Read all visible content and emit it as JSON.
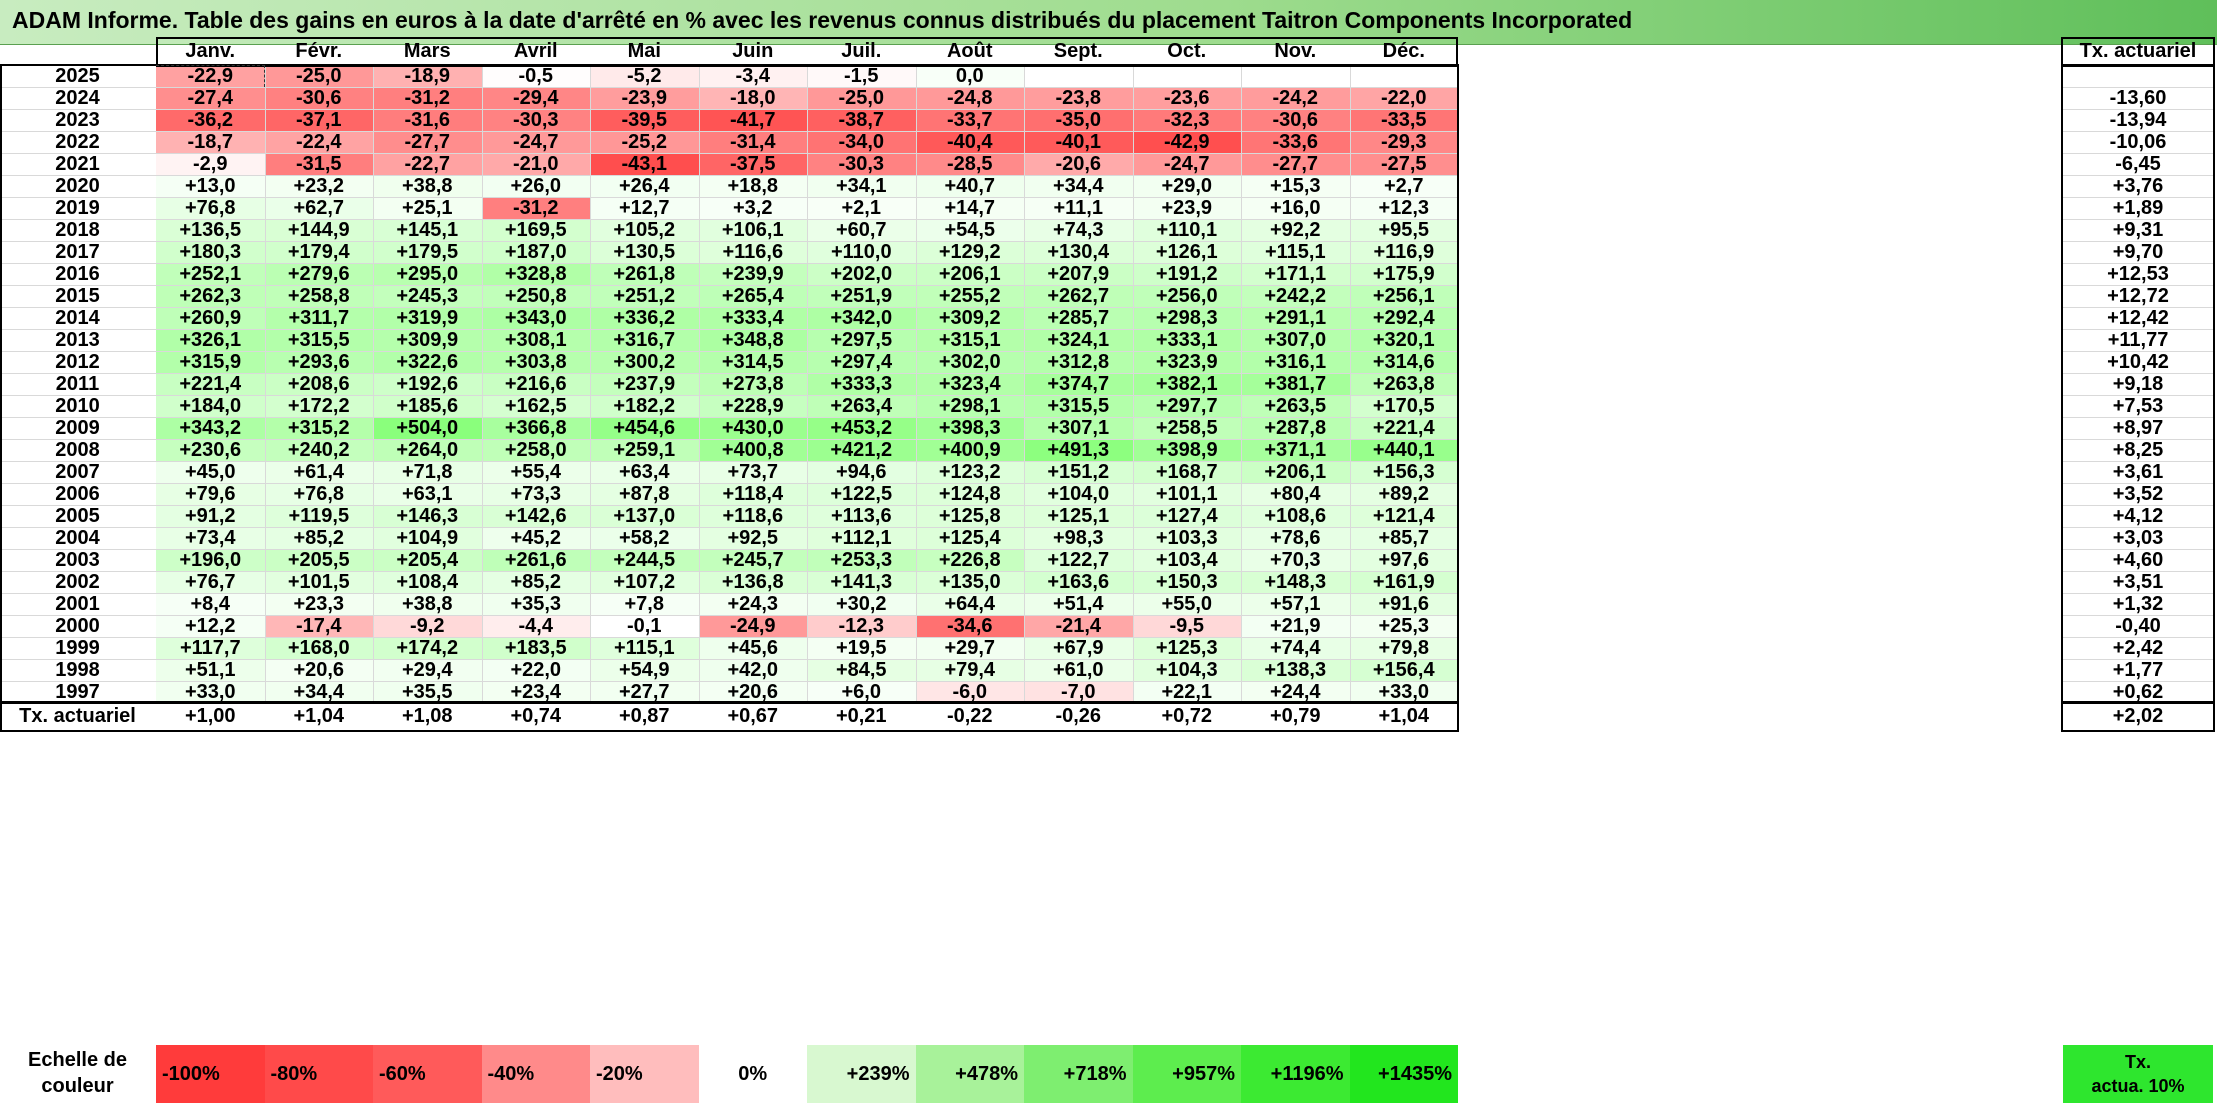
{
  "title": "ADAM Informe. Table des gains en euros à la date d'arrêté en % avec les revenus connus distribués du placement Taitron Components Incorporated",
  "months": [
    "Janv.",
    "Févr.",
    "Mars",
    "Avril",
    "Mai",
    "Juin",
    "Juil.",
    "Août",
    "Sept.",
    "Oct.",
    "Nov.",
    "Déc."
  ],
  "tx_header": "Tx. actuariel",
  "rows": [
    {
      "year": "2025",
      "values": [
        "-22,9",
        "-25,0",
        "-18,9",
        "-0,5",
        "-5,2",
        "-3,4",
        "-1,5",
        "0,0",
        "",
        "",
        "",
        ""
      ],
      "tx": ""
    },
    {
      "year": "2024",
      "values": [
        "-27,4",
        "-30,6",
        "-31,2",
        "-29,4",
        "-23,9",
        "-18,0",
        "-25,0",
        "-24,8",
        "-23,8",
        "-23,6",
        "-24,2",
        "-22,0"
      ],
      "tx": "-13,60"
    },
    {
      "year": "2023",
      "values": [
        "-36,2",
        "-37,1",
        "-31,6",
        "-30,3",
        "-39,5",
        "-41,7",
        "-38,7",
        "-33,7",
        "-35,0",
        "-32,3",
        "-30,6",
        "-33,5"
      ],
      "tx": "-13,94"
    },
    {
      "year": "2022",
      "values": [
        "-18,7",
        "-22,4",
        "-27,7",
        "-24,7",
        "-25,2",
        "-31,4",
        "-34,0",
        "-40,4",
        "-40,1",
        "-42,9",
        "-33,6",
        "-29,3"
      ],
      "tx": "-10,06"
    },
    {
      "year": "2021",
      "values": [
        "-2,9",
        "-31,5",
        "-22,7",
        "-21,0",
        "-43,1",
        "-37,5",
        "-30,3",
        "-28,5",
        "-20,6",
        "-24,7",
        "-27,7",
        "-27,5"
      ],
      "tx": "-6,45"
    },
    {
      "year": "2020",
      "values": [
        "+13,0",
        "+23,2",
        "+38,8",
        "+26,0",
        "+26,4",
        "+18,8",
        "+34,1",
        "+40,7",
        "+34,4",
        "+29,0",
        "+15,3",
        "+2,7"
      ],
      "tx": "+3,76"
    },
    {
      "year": "2019",
      "values": [
        "+76,8",
        "+62,7",
        "+25,1",
        "-31,2",
        "+12,7",
        "+3,2",
        "+2,1",
        "+14,7",
        "+11,1",
        "+23,9",
        "+16,0",
        "+12,3"
      ],
      "tx": "+1,89"
    },
    {
      "year": "2018",
      "values": [
        "+136,5",
        "+144,9",
        "+145,1",
        "+169,5",
        "+105,2",
        "+106,1",
        "+60,7",
        "+54,5",
        "+74,3",
        "+110,1",
        "+92,2",
        "+95,5"
      ],
      "tx": "+9,31"
    },
    {
      "year": "2017",
      "values": [
        "+180,3",
        "+179,4",
        "+179,5",
        "+187,0",
        "+130,5",
        "+116,6",
        "+110,0",
        "+129,2",
        "+130,4",
        "+126,1",
        "+115,1",
        "+116,9"
      ],
      "tx": "+9,70"
    },
    {
      "year": "2016",
      "values": [
        "+252,1",
        "+279,6",
        "+295,0",
        "+328,8",
        "+261,8",
        "+239,9",
        "+202,0",
        "+206,1",
        "+207,9",
        "+191,2",
        "+171,1",
        "+175,9"
      ],
      "tx": "+12,53"
    },
    {
      "year": "2015",
      "values": [
        "+262,3",
        "+258,8",
        "+245,3",
        "+250,8",
        "+251,2",
        "+265,4",
        "+251,9",
        "+255,2",
        "+262,7",
        "+256,0",
        "+242,2",
        "+256,1"
      ],
      "tx": "+12,72"
    },
    {
      "year": "2014",
      "values": [
        "+260,9",
        "+311,7",
        "+319,9",
        "+343,0",
        "+336,2",
        "+333,4",
        "+342,0",
        "+309,2",
        "+285,7",
        "+298,3",
        "+291,1",
        "+292,4"
      ],
      "tx": "+12,42"
    },
    {
      "year": "2013",
      "values": [
        "+326,1",
        "+315,5",
        "+309,9",
        "+308,1",
        "+316,7",
        "+348,8",
        "+297,5",
        "+315,1",
        "+324,1",
        "+333,1",
        "+307,0",
        "+320,1"
      ],
      "tx": "+11,77"
    },
    {
      "year": "2012",
      "values": [
        "+315,9",
        "+293,6",
        "+322,6",
        "+303,8",
        "+300,2",
        "+314,5",
        "+297,4",
        "+302,0",
        "+312,8",
        "+323,9",
        "+316,1",
        "+314,6"
      ],
      "tx": "+10,42"
    },
    {
      "year": "2011",
      "values": [
        "+221,4",
        "+208,6",
        "+192,6",
        "+216,6",
        "+237,9",
        "+273,8",
        "+333,3",
        "+323,4",
        "+374,7",
        "+382,1",
        "+381,7",
        "+263,8"
      ],
      "tx": "+9,18"
    },
    {
      "year": "2010",
      "values": [
        "+184,0",
        "+172,2",
        "+185,6",
        "+162,5",
        "+182,2",
        "+228,9",
        "+263,4",
        "+298,1",
        "+315,5",
        "+297,7",
        "+263,5",
        "+170,5"
      ],
      "tx": "+7,53"
    },
    {
      "year": "2009",
      "values": [
        "+343,2",
        "+315,2",
        "+504,0",
        "+366,8",
        "+454,6",
        "+430,0",
        "+453,2",
        "+398,3",
        "+307,1",
        "+258,5",
        "+287,8",
        "+221,4"
      ],
      "tx": "+8,97"
    },
    {
      "year": "2008",
      "values": [
        "+230,6",
        "+240,2",
        "+264,0",
        "+258,0",
        "+259,1",
        "+400,8",
        "+421,2",
        "+400,9",
        "+491,3",
        "+398,9",
        "+371,1",
        "+440,1"
      ],
      "tx": "+8,25"
    },
    {
      "year": "2007",
      "values": [
        "+45,0",
        "+61,4",
        "+71,8",
        "+55,4",
        "+63,4",
        "+73,7",
        "+94,6",
        "+123,2",
        "+151,2",
        "+168,7",
        "+206,1",
        "+156,3"
      ],
      "tx": "+3,61"
    },
    {
      "year": "2006",
      "values": [
        "+79,6",
        "+76,8",
        "+63,1",
        "+73,3",
        "+87,8",
        "+118,4",
        "+122,5",
        "+124,8",
        "+104,0",
        "+101,1",
        "+80,4",
        "+89,2"
      ],
      "tx": "+3,52"
    },
    {
      "year": "2005",
      "values": [
        "+91,2",
        "+119,5",
        "+146,3",
        "+142,6",
        "+137,0",
        "+118,6",
        "+113,6",
        "+125,8",
        "+125,1",
        "+127,4",
        "+108,6",
        "+121,4"
      ],
      "tx": "+4,12"
    },
    {
      "year": "2004",
      "values": [
        "+73,4",
        "+85,2",
        "+104,9",
        "+45,2",
        "+58,2",
        "+92,5",
        "+112,1",
        "+125,4",
        "+98,3",
        "+103,3",
        "+78,6",
        "+85,7"
      ],
      "tx": "+3,03"
    },
    {
      "year": "2003",
      "values": [
        "+196,0",
        "+205,5",
        "+205,4",
        "+261,6",
        "+244,5",
        "+245,7",
        "+253,3",
        "+226,8",
        "+122,7",
        "+103,4",
        "+70,3",
        "+97,6"
      ],
      "tx": "+4,60"
    },
    {
      "year": "2002",
      "values": [
        "+76,7",
        "+101,5",
        "+108,4",
        "+85,2",
        "+107,2",
        "+136,8",
        "+141,3",
        "+135,0",
        "+163,6",
        "+150,3",
        "+148,3",
        "+161,9"
      ],
      "tx": "+3,51"
    },
    {
      "year": "2001",
      "values": [
        "+8,4",
        "+23,3",
        "+38,8",
        "+35,3",
        "+7,8",
        "+24,3",
        "+30,2",
        "+64,4",
        "+51,4",
        "+55,0",
        "+57,1",
        "+91,6"
      ],
      "tx": "+1,32"
    },
    {
      "year": "2000",
      "values": [
        "+12,2",
        "-17,4",
        "-9,2",
        "-4,4",
        "-0,1",
        "-24,9",
        "-12,3",
        "-34,6",
        "-21,4",
        "-9,5",
        "+21,9",
        "+25,3"
      ],
      "tx": "-0,40"
    },
    {
      "year": "1999",
      "values": [
        "+117,7",
        "+168,0",
        "+174,2",
        "+183,5",
        "+115,1",
        "+45,6",
        "+19,5",
        "+29,7",
        "+67,9",
        "+125,3",
        "+74,4",
        "+79,8"
      ],
      "tx": "+2,42"
    },
    {
      "year": "1998",
      "values": [
        "+51,1",
        "+20,6",
        "+29,4",
        "+22,0",
        "+54,9",
        "+42,0",
        "+84,5",
        "+79,4",
        "+61,0",
        "+104,3",
        "+138,3",
        "+156,4"
      ],
      "tx": "+1,77"
    },
    {
      "year": "1997",
      "values": [
        "+33,0",
        "+34,4",
        "+35,5",
        "+23,4",
        "+27,7",
        "+20,6",
        "+6,0",
        "-6,0",
        "-7,0",
        "+22,1",
        "+24,4",
        "+33,0"
      ],
      "tx": "+0,62"
    }
  ],
  "footer": {
    "label": "Tx. actuariel",
    "values": [
      "+1,00",
      "+1,04",
      "+1,08",
      "+0,74",
      "+0,87",
      "+0,67",
      "+0,21",
      "-0,22",
      "-0,26",
      "+0,72",
      "+0,79",
      "+1,04"
    ],
    "tx": "+2,02"
  },
  "scale": {
    "label_line1": "Echelle de",
    "label_line2": "couleur",
    "items": [
      {
        "label": "-100%",
        "color": "#ff3b3b",
        "align": "left"
      },
      {
        "label": "-80%",
        "color": "#ff4a4a",
        "align": "left"
      },
      {
        "label": "-60%",
        "color": "#ff5a5a",
        "align": "left"
      },
      {
        "label": "-40%",
        "color": "#ff8a8a",
        "align": "left"
      },
      {
        "label": "-20%",
        "color": "#ffbdbd",
        "align": "left"
      },
      {
        "label": "0%",
        "color": "#ffffff",
        "align": "center"
      },
      {
        "label": "+239%",
        "color": "#d8f8d0",
        "align": "right"
      },
      {
        "label": "+478%",
        "color": "#a8f29a",
        "align": "right"
      },
      {
        "label": "+718%",
        "color": "#7eee70",
        "align": "right"
      },
      {
        "label": "+957%",
        "color": "#5ded4e",
        "align": "right"
      },
      {
        "label": "+1196%",
        "color": "#3cea32",
        "align": "right"
      },
      {
        "label": "+1435%",
        "color": "#22e61e",
        "align": "right"
      }
    ],
    "tx_legend_line1": "Tx.",
    "tx_legend_line2": "actua. 10%",
    "tx_legend_color": "#2ee62e"
  }
}
